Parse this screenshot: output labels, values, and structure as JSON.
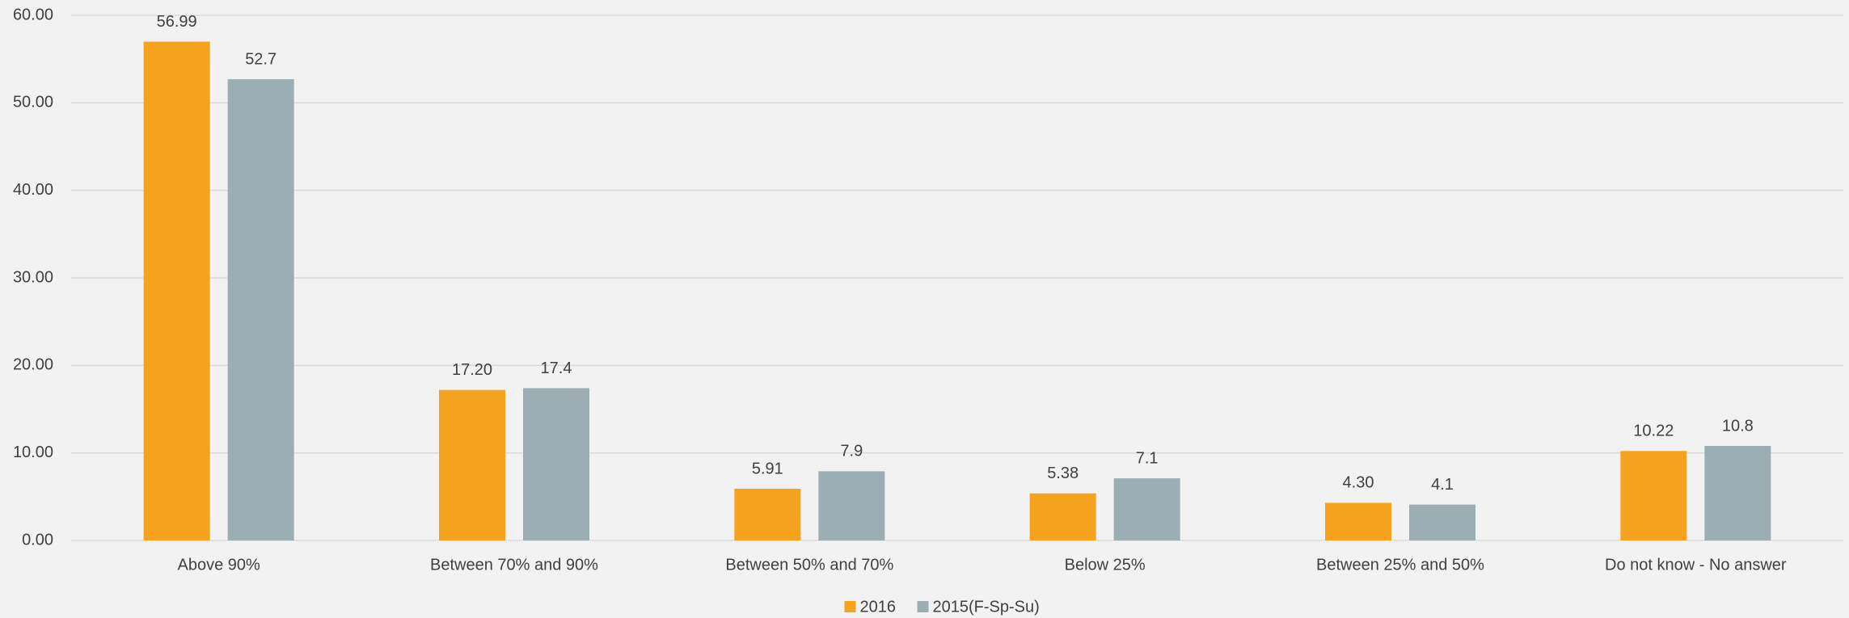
{
  "chart_data": {
    "type": "bar",
    "categories": [
      "Above 90%",
      "Between 70% and 90%",
      "Between 50% and 70%",
      "Below 25%",
      "Between 25% and 50%",
      "Do not know - No answer"
    ],
    "series": [
      {
        "name": "2016",
        "color": "#f5a31f",
        "values": [
          56.99,
          17.2,
          5.91,
          5.38,
          4.3,
          10.22
        ],
        "value_labels": [
          "56.99",
          "17.20",
          "5.91",
          "5.38",
          "4.30",
          "10.22"
        ]
      },
      {
        "name": "2015(F-Sp-Su)",
        "color": "#9caeb3",
        "values": [
          52.7,
          17.4,
          7.9,
          7.1,
          4.1,
          10.8
        ]
      }
    ],
    "ylim": [
      0,
      60
    ],
    "yticks": [
      {
        "value": 0,
        "label": "0.00"
      },
      {
        "value": 10,
        "label": "10.00"
      },
      {
        "value": 20,
        "label": "20.00"
      },
      {
        "value": 30,
        "label": "30.00"
      },
      {
        "value": 40,
        "label": "40.00"
      },
      {
        "value": 50,
        "label": "50.00"
      },
      {
        "value": 60,
        "label": "60.00"
      }
    ],
    "grid": true,
    "legend": "bottom"
  }
}
